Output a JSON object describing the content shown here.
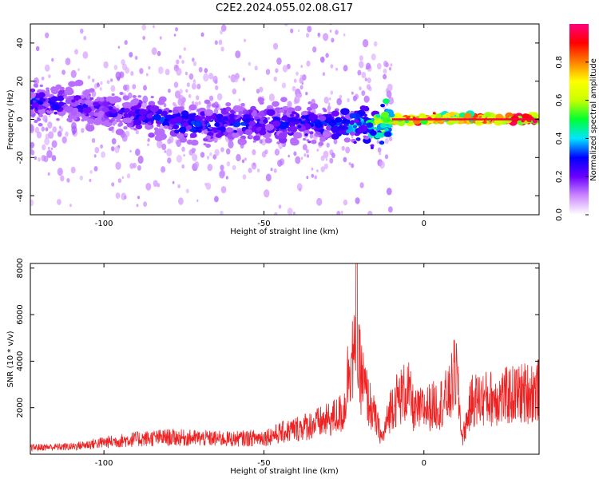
{
  "figure": {
    "title": "C2E2.2024.055.02.08.G17"
  },
  "chart_data": [
    {
      "type": "heatmap",
      "xlabel": "Height of straight line (km)",
      "ylabel": "Frequency (Hz)",
      "xlim": [
        -123,
        36
      ],
      "ylim": [
        -50,
        50
      ],
      "x_ticks": [
        -100,
        -50,
        0
      ],
      "y_ticks": [
        -40,
        -20,
        0,
        20,
        40
      ],
      "colorbar": {
        "label": "Normalized spectral amplitude",
        "range": [
          0,
          1
        ],
        "ticks": [
          0.0,
          0.2,
          0.4,
          0.6,
          0.8
        ],
        "tick_labels": [
          "0.0",
          "0.2",
          "0.4",
          "0.6",
          "0.8"
        ],
        "colors": [
          "#ffffff",
          "#cc88ff",
          "#6a00ff",
          "#0000ff",
          "#00e5ff",
          "#00ff30",
          "#c8ff00",
          "#ffff00",
          "#ff8000",
          "#ff0000",
          "#ff0080"
        ]
      },
      "signal_band": {
        "center_freq_start": 10,
        "center_freq_end": 0,
        "description_points": [
          {
            "x": -123,
            "f": 10,
            "amp": 0.3
          },
          {
            "x": -100,
            "f": 5,
            "amp": 0.25
          },
          {
            "x": -75,
            "f": -2,
            "amp": 0.35
          },
          {
            "x": -50,
            "f": -2,
            "amp": 0.3
          },
          {
            "x": -30,
            "f": -3,
            "amp": 0.35
          },
          {
            "x": -18,
            "f": -3,
            "amp": 0.45
          },
          {
            "x": -8,
            "f": 0,
            "amp": 0.85
          },
          {
            "x": 0,
            "f": 0,
            "amp": 0.95
          },
          {
            "x": 10,
            "f": 1,
            "amp": 0.75
          },
          {
            "x": 20,
            "f": 0,
            "amp": 0.9
          },
          {
            "x": 36,
            "f": 0,
            "amp": 0.95
          }
        ]
      },
      "grid": false
    },
    {
      "type": "line",
      "xlabel": "Height of straight line (km)",
      "ylabel": "SNR (10 * v/v)",
      "xlim": [
        -123,
        36
      ],
      "ylim": [
        0,
        8200
      ],
      "x_ticks": [
        -100,
        -50,
        0
      ],
      "y_ticks": [
        2000,
        4000,
        6000,
        8000
      ],
      "series": [
        {
          "color": "#ee2222",
          "envelope_points": [
            {
              "x": -123,
              "y": 400
            },
            {
              "x": -110,
              "y": 450
            },
            {
              "x": -100,
              "y": 700
            },
            {
              "x": -90,
              "y": 900
            },
            {
              "x": -80,
              "y": 1000
            },
            {
              "x": -70,
              "y": 950
            },
            {
              "x": -60,
              "y": 900
            },
            {
              "x": -50,
              "y": 1000
            },
            {
              "x": -40,
              "y": 1500
            },
            {
              "x": -30,
              "y": 2000
            },
            {
              "x": -25,
              "y": 2500
            },
            {
              "x": -23,
              "y": 6000
            },
            {
              "x": -20,
              "y": 5000
            },
            {
              "x": -18,
              "y": 3500
            },
            {
              "x": -15,
              "y": 2000
            },
            {
              "x": -13,
              "y": 900
            },
            {
              "x": -10,
              "y": 3000
            },
            {
              "x": -5,
              "y": 3800
            },
            {
              "x": -3,
              "y": 2500
            },
            {
              "x": 0,
              "y": 2700
            },
            {
              "x": 5,
              "y": 3000
            },
            {
              "x": 8,
              "y": 3500
            },
            {
              "x": 10,
              "y": 5000
            },
            {
              "x": 12,
              "y": 900
            },
            {
              "x": 15,
              "y": 3200
            },
            {
              "x": 25,
              "y": 3400
            },
            {
              "x": 36,
              "y": 3800
            }
          ],
          "peak": {
            "x": -21,
            "y": 8200
          }
        }
      ],
      "grid": false
    }
  ]
}
